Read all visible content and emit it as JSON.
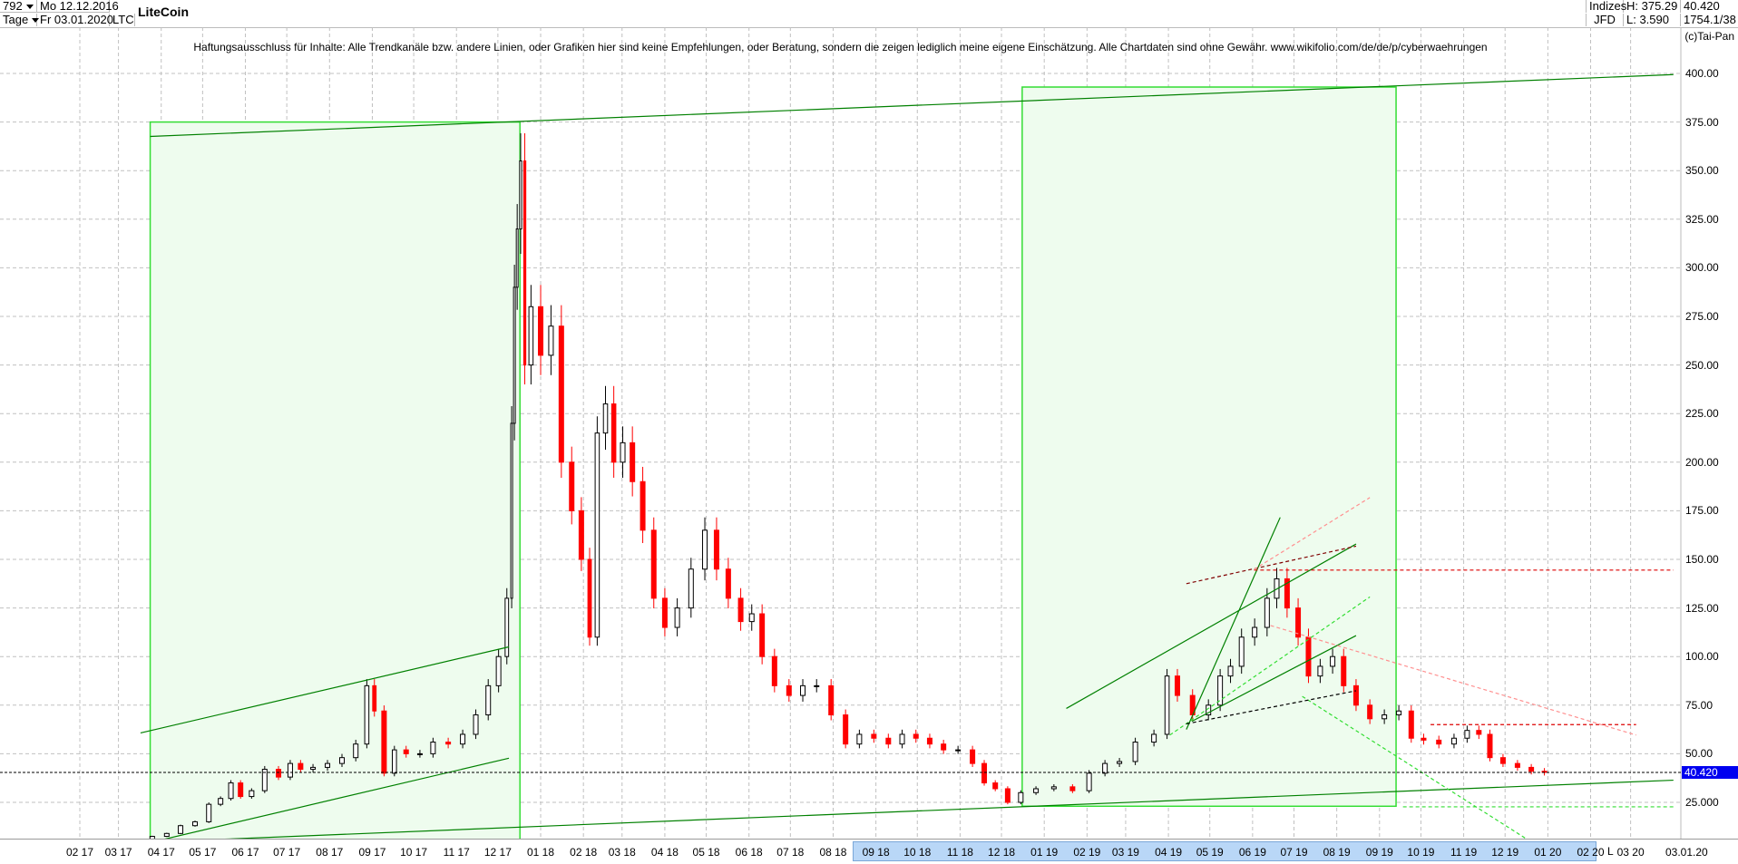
{
  "header": {
    "bar_count": "792",
    "period": "Tage",
    "start_date": "Mo 12.12.2016",
    "end_date": "Fr 03.01.2020",
    "symbol": "LTC",
    "title": "LiteCoin",
    "exchange_group": "Indizes",
    "exchange": "JFD",
    "high": "H: 375.29",
    "low": "L: 3.590",
    "last": "40.420",
    "bar_info": "1754.1/38",
    "copyright": "(c)Tai-Pan"
  },
  "disclaimer": "Haftungsausschluss für Inhalte: Alle Trendkanäle bzw. andere Linien, oder Grafiken hier sind keine Empfehlungen, oder Beratung, sondern die zeigen lediglich meine eigene Einschätzung. Alle Chartdaten sind ohne Gewähr.  www.wikifolio.com/de/de/p/cyberwaehrungen",
  "axis": {
    "l_button": "L",
    "last_date": "03.01.20",
    "current_price_label": "40.420"
  },
  "colors": {
    "up": "#000000",
    "down": "#ff0000",
    "box_fill": "#eefcee",
    "box_stroke": "#33dd33",
    "trend": "#008000",
    "price_line": "#0000f0"
  },
  "chart_data": {
    "type": "candlestick",
    "title": "LiteCoin",
    "ylim": [
      0,
      410
    ],
    "y_ticks": [
      "25.000",
      "50.00",
      "75.00",
      "100.00",
      "125.00",
      "150.00",
      "175.00",
      "200.00",
      "225.00",
      "250.00",
      "275.00",
      "300.00",
      "325.00",
      "350.00",
      "375.00",
      "400.00"
    ],
    "x_ticks": [
      "02 17",
      "03 17",
      "04 17",
      "05 17",
      "06 17",
      "07 17",
      "08 17",
      "09 17",
      "10 17",
      "11 17",
      "12 17",
      "01 18",
      "02 18",
      "03 18",
      "04 18",
      "05 18",
      "06 18",
      "07 18",
      "08 18",
      "09 18",
      "10 18",
      "11 18",
      "12 18",
      "01 19",
      "02 19",
      "03 19",
      "04 19",
      "05 19",
      "06 19",
      "07 19",
      "08 19",
      "09 19",
      "10 19",
      "11 19",
      "12 19",
      "01 20",
      "02 20",
      "03 20"
    ],
    "x_first_tick": "2017-02-01",
    "grid": true,
    "current_price": 40.42,
    "closes": [
      [
        "2016-12-12",
        3.7
      ],
      [
        "2017-01-01",
        4.4
      ],
      [
        "2017-01-20",
        3.9
      ],
      [
        "2017-02-10",
        3.8
      ],
      [
        "2017-03-01",
        3.9
      ],
      [
        "2017-03-20",
        4.0
      ],
      [
        "2017-03-31",
        7.5
      ],
      [
        "2017-04-10",
        9
      ],
      [
        "2017-04-20",
        13
      ],
      [
        "2017-05-01",
        15
      ],
      [
        "2017-05-10",
        24
      ],
      [
        "2017-05-18",
        27
      ],
      [
        "2017-05-25",
        35
      ],
      [
        "2017-06-01",
        28
      ],
      [
        "2017-06-10",
        31
      ],
      [
        "2017-06-20",
        42
      ],
      [
        "2017-06-30",
        38
      ],
      [
        "2017-07-07",
        45
      ],
      [
        "2017-07-15",
        42
      ],
      [
        "2017-07-25",
        43
      ],
      [
        "2017-08-05",
        45
      ],
      [
        "2017-08-15",
        48
      ],
      [
        "2017-08-25",
        55
      ],
      [
        "2017-08-31",
        85
      ],
      [
        "2017-09-05",
        72
      ],
      [
        "2017-09-14",
        40
      ],
      [
        "2017-09-20",
        52
      ],
      [
        "2017-10-01",
        50
      ],
      [
        "2017-10-10",
        50
      ],
      [
        "2017-10-20",
        56
      ],
      [
        "2017-11-01",
        55
      ],
      [
        "2017-11-10",
        60
      ],
      [
        "2017-11-20",
        70
      ],
      [
        "2017-11-28",
        85
      ],
      [
        "2017-12-05",
        100
      ],
      [
        "2017-12-10",
        130
      ],
      [
        "2017-12-12",
        220
      ],
      [
        "2017-12-14",
        290
      ],
      [
        "2017-12-16",
        320
      ],
      [
        "2017-12-19",
        355
      ],
      [
        "2017-12-22",
        250
      ],
      [
        "2017-12-28",
        280
      ],
      [
        "2018-01-05",
        255
      ],
      [
        "2018-01-12",
        270
      ],
      [
        "2018-01-20",
        200
      ],
      [
        "2018-01-27",
        175
      ],
      [
        "2018-02-03",
        150
      ],
      [
        "2018-02-08",
        110
      ],
      [
        "2018-02-14",
        215
      ],
      [
        "2018-02-20",
        230
      ],
      [
        "2018-02-26",
        200
      ],
      [
        "2018-03-05",
        210
      ],
      [
        "2018-03-12",
        190
      ],
      [
        "2018-03-20",
        165
      ],
      [
        "2018-03-28",
        130
      ],
      [
        "2018-04-05",
        115
      ],
      [
        "2018-04-15",
        125
      ],
      [
        "2018-04-25",
        145
      ],
      [
        "2018-05-05",
        165
      ],
      [
        "2018-05-12",
        145
      ],
      [
        "2018-05-22",
        130
      ],
      [
        "2018-05-30",
        118
      ],
      [
        "2018-06-07",
        122
      ],
      [
        "2018-06-14",
        100
      ],
      [
        "2018-06-25",
        85
      ],
      [
        "2018-07-05",
        80
      ],
      [
        "2018-07-15",
        85
      ],
      [
        "2018-07-25",
        85
      ],
      [
        "2018-08-05",
        70
      ],
      [
        "2018-08-15",
        55
      ],
      [
        "2018-08-25",
        60
      ],
      [
        "2018-09-05",
        58
      ],
      [
        "2018-09-15",
        55
      ],
      [
        "2018-09-25",
        60
      ],
      [
        "2018-10-05",
        58
      ],
      [
        "2018-10-15",
        55
      ],
      [
        "2018-10-25",
        52
      ],
      [
        "2018-11-05",
        52
      ],
      [
        "2018-11-15",
        45
      ],
      [
        "2018-11-22",
        35
      ],
      [
        "2018-12-01",
        32
      ],
      [
        "2018-12-10",
        25
      ],
      [
        "2018-12-20",
        30
      ],
      [
        "2019-01-01",
        32
      ],
      [
        "2019-01-15",
        33
      ],
      [
        "2019-01-28",
        31
      ],
      [
        "2019-02-08",
        40
      ],
      [
        "2019-02-20",
        45
      ],
      [
        "2019-03-01",
        46
      ],
      [
        "2019-03-15",
        56
      ],
      [
        "2019-03-28",
        60
      ],
      [
        "2019-04-03",
        90
      ],
      [
        "2019-04-12",
        80
      ],
      [
        "2019-04-25",
        70
      ],
      [
        "2019-05-05",
        75
      ],
      [
        "2019-05-12",
        90
      ],
      [
        "2019-05-20",
        95
      ],
      [
        "2019-05-28",
        110
      ],
      [
        "2019-06-08",
        115
      ],
      [
        "2019-06-15",
        130
      ],
      [
        "2019-06-22",
        140
      ],
      [
        "2019-06-30",
        125
      ],
      [
        "2019-07-08",
        110
      ],
      [
        "2019-07-15",
        90
      ],
      [
        "2019-07-25",
        95
      ],
      [
        "2019-08-02",
        100
      ],
      [
        "2019-08-10",
        85
      ],
      [
        "2019-08-20",
        75
      ],
      [
        "2019-08-30",
        68
      ],
      [
        "2019-09-10",
        70
      ],
      [
        "2019-09-20",
        72
      ],
      [
        "2019-09-28",
        58
      ],
      [
        "2019-10-08",
        57
      ],
      [
        "2019-10-20",
        55
      ],
      [
        "2019-10-30",
        58
      ],
      [
        "2019-11-08",
        62
      ],
      [
        "2019-11-16",
        60
      ],
      [
        "2019-11-24",
        48
      ],
      [
        "2019-12-05",
        45
      ],
      [
        "2019-12-15",
        43
      ],
      [
        "2019-12-25",
        41
      ],
      [
        "2020-01-03",
        40.42
      ]
    ],
    "boxes": [
      {
        "from": "2017-03-24",
        "to": "2017-12-17",
        "top": 375,
        "bottom": 0
      },
      {
        "from": "2018-12-16",
        "to": "2019-09-13",
        "top": 393,
        "bottom": 23
      }
    ],
    "lines": [
      {
        "from": [
          "2017-03-24",
          367.6
        ],
        "to": [
          "2020-04-01",
          399.4
        ],
        "color": "#008000",
        "dash": false
      },
      {
        "from": [
          "2017-03-24",
          4.5
        ],
        "to": [
          "2020-04-01",
          36.4
        ],
        "color": "#008000",
        "dash": false
      },
      {
        "from": [
          "2017-03-17",
          60.7
        ],
        "to": [
          "2017-12-09",
          105
        ],
        "color": "#008000",
        "dash": false
      },
      {
        "from": [
          "2017-03-25",
          4.5
        ],
        "to": [
          "2017-12-09",
          47.7
        ],
        "color": "#008000",
        "dash": false
      },
      {
        "from": [
          "2019-01-17",
          73.3
        ],
        "to": [
          "2019-08-15",
          157.9
        ],
        "color": "#008000",
        "dash": false
      },
      {
        "from": [
          "2019-04-18",
          66.7
        ],
        "to": [
          "2019-08-15",
          110.8
        ],
        "color": "#008000",
        "dash": false
      },
      {
        "from": [
          "2019-04-14",
          62.5
        ],
        "to": [
          "2019-06-21",
          171.6
        ],
        "color": "#008000",
        "dash": false
      },
      {
        "from": [
          "2019-06-02",
          144.5
        ],
        "to": [
          "2020-04-01",
          144.5
        ],
        "color": "#dd0000",
        "dash": true
      },
      {
        "from": [
          "2019-10-08",
          65
        ],
        "to": [
          "2020-03-05",
          65
        ],
        "color": "#dd0000",
        "dash": true
      },
      {
        "from": [
          "2019-04-14",
          137.5
        ],
        "to": [
          "2019-08-15",
          156.8
        ],
        "color": "#800000",
        "dash": true
      },
      {
        "from": [
          "2019-06-02",
          144.8
        ],
        "to": [
          "2019-08-25",
          181.8
        ],
        "color": "#ff9090",
        "dash": true
      },
      {
        "from": [
          "2019-06-14",
          116
        ],
        "to": [
          "2020-03-05",
          59.6
        ],
        "color": "#ff9090",
        "dash": true
      },
      {
        "from": [
          "2019-07-07",
          79.5
        ],
        "to": [
          "2019-12-24",
          2.8
        ],
        "color": "#33dd33",
        "dash": true
      },
      {
        "from": [
          "2019-04-02",
          59.6
        ],
        "to": [
          "2019-08-25",
          130.7
        ],
        "color": "#33dd33",
        "dash": true
      },
      {
        "from": [
          "2019-09-18",
          22.7
        ],
        "to": [
          "2020-04-01",
          22.7
        ],
        "color": "#33dd33",
        "dash": true
      },
      {
        "from": [
          "2019-04-14",
          65.4
        ],
        "to": [
          "2019-08-15",
          82.4
        ],
        "color": "#000000",
        "dash": true
      }
    ]
  }
}
